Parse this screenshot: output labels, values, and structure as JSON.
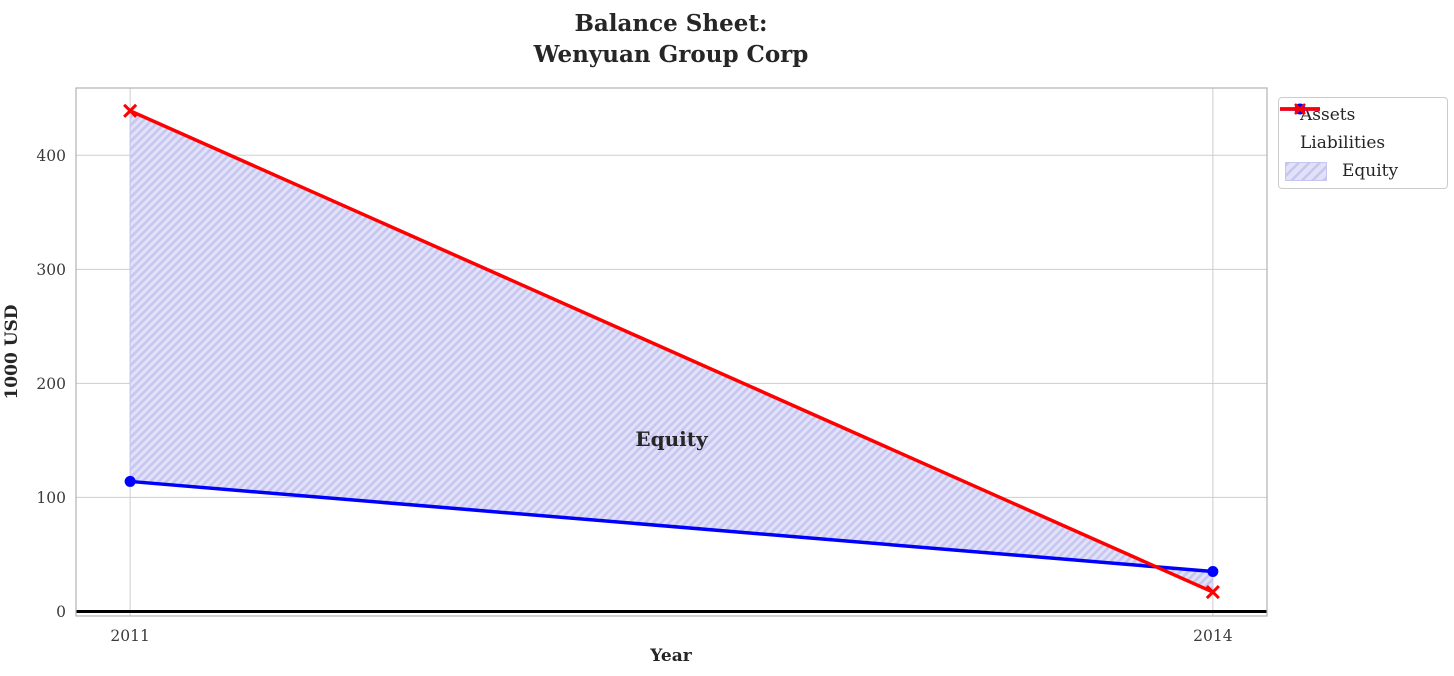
{
  "title": {
    "line1": "Balance Sheet:",
    "line2": "Wenyuan Group Corp"
  },
  "chart_data": {
    "type": "line",
    "title": "Balance Sheet:\nWenyuan Group Corp",
    "xlabel": "Year",
    "ylabel": "1000 USD",
    "x": [
      2011,
      2014
    ],
    "series": [
      {
        "name": "Assets",
        "values": [
          114,
          35
        ],
        "color": "#0000ff",
        "marker": "circle"
      },
      {
        "name": "Liabilities",
        "values": [
          439,
          17
        ],
        "color": "#ff0000",
        "marker": "x"
      }
    ],
    "area": {
      "name": "Equity",
      "between": [
        "Liabilities",
        "Assets"
      ],
      "fill": "#e1e1f8",
      "hatch_color": "#c6c6f0",
      "hatch": "//"
    },
    "annotation": {
      "text": "Equity",
      "x": 2012.5,
      "y": 145,
      "color": "#ff0000"
    },
    "xticks": [
      2011,
      2014
    ],
    "yticks": [
      0,
      100,
      200,
      300,
      400
    ],
    "xlim": [
      2010.85,
      2014.15
    ],
    "ylim": [
      -4,
      459
    ],
    "grid": true,
    "grid_color": "#cdcdcd",
    "spine_color": "#b2b2b2",
    "zero_line": true,
    "zero_line_color": "#000000",
    "legend": [
      "Assets",
      "Liabilities",
      "Equity"
    ],
    "legend_position": "outside-top-right"
  }
}
